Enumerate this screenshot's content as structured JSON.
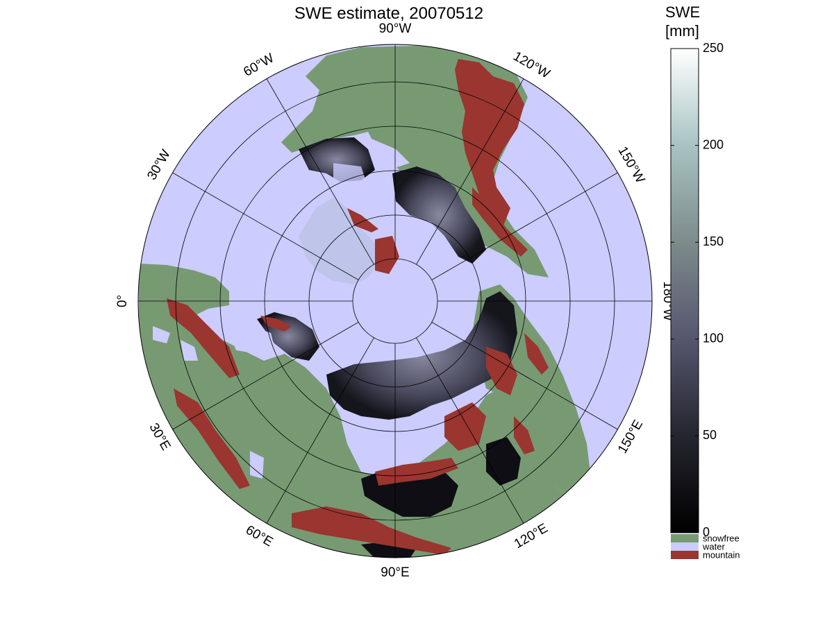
{
  "title": "SWE estimate, 20070512",
  "colorbar": {
    "title_line1": "SWE",
    "title_line2": "[mm]",
    "range": [
      0,
      250
    ],
    "ticks": [
      {
        "label": "0",
        "value": 0
      },
      {
        "label": "50",
        "value": 50
      },
      {
        "label": "100",
        "value": 100
      },
      {
        "label": "150",
        "value": 150
      },
      {
        "label": "200",
        "value": 200
      },
      {
        "label": "250",
        "value": 250
      }
    ],
    "gradient": [
      "#000000",
      "#2a2a38",
      "#5a5a78",
      "#7e8c8c",
      "#a7c2c2",
      "#ffffff"
    ]
  },
  "categories": [
    {
      "label": "snowfree",
      "color": "#779a73"
    },
    {
      "label": "water",
      "color": "#ccccff"
    },
    {
      "label": "mountain",
      "color": "#9a3530"
    }
  ],
  "longitude_labels": [
    {
      "text": "90°W",
      "deg": 90
    },
    {
      "text": "120°W",
      "deg": 60
    },
    {
      "text": "150°W",
      "deg": 30
    },
    {
      "text": "180°W",
      "deg": 0
    },
    {
      "text": "150°E",
      "deg": -30
    },
    {
      "text": "120°E",
      "deg": -60
    },
    {
      "text": "90°E",
      "deg": -90
    },
    {
      "text": "60°E",
      "deg": -120
    },
    {
      "text": "30°E",
      "deg": -150
    },
    {
      "text": "0°",
      "deg": 180
    },
    {
      "text": "30°W",
      "deg": 150
    },
    {
      "text": "60°W",
      "deg": 120
    }
  ],
  "colors": {
    "water": "#ccccff",
    "snowfree": "#779a73",
    "mountain": "#9a3530",
    "snow_dark": "#1a1a24",
    "snow_mid": "#5a5a70"
  }
}
